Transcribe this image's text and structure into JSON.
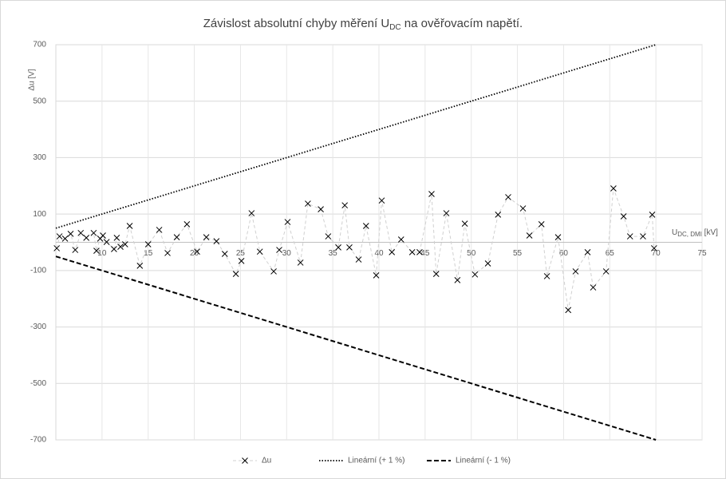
{
  "chart_data": {
    "type": "line",
    "title": "Závislost absolutní chyby měření U",
    "title_sub": "DC",
    "title_end": " na ověřovacím napětí.",
    "y_label": "Δu [V]",
    "x_label": "U",
    "x_label_sub": "DC, DMI",
    "x_label_end": " [kV]",
    "xlim": [
      5,
      75
    ],
    "xticks": [
      10,
      15,
      20,
      25,
      30,
      35,
      40,
      45,
      50,
      55,
      60,
      65,
      70,
      75
    ],
    "ylim": [
      -700,
      700
    ],
    "yticks": [
      -700,
      -500,
      -300,
      -100,
      100,
      300,
      500,
      700
    ],
    "grid": true,
    "legend": "bottom",
    "series": [
      {
        "name": "Δu",
        "color": "#d0d0d0",
        "marker_color": "#000000",
        "marker": "x",
        "dash": "dashed",
        "x": [
          5.1,
          5.4,
          6.0,
          6.6,
          7.1,
          7.7,
          8.3,
          9.1,
          9.4,
          9.8,
          10.1,
          10.5,
          11.3,
          11.6,
          12.0,
          12.5,
          13.0,
          14.1,
          15.0,
          16.2,
          17.1,
          18.1,
          19.2,
          20.3,
          21.3,
          22.4,
          23.3,
          24.5,
          25.1,
          26.2,
          27.1,
          28.6,
          29.2,
          30.1,
          31.5,
          32.3,
          33.7,
          34.5,
          35.6,
          36.3,
          36.8,
          37.8,
          38.6,
          39.7,
          40.3,
          41.4,
          42.4,
          43.6,
          44.4,
          45.7,
          46.2,
          47.3,
          48.5,
          49.3,
          50.4,
          51.8,
          52.9,
          54.0,
          55.6,
          56.3,
          57.6,
          58.2,
          59.4,
          60.5,
          61.3,
          62.6,
          63.2,
          64.6,
          65.4,
          66.5,
          67.2,
          68.6,
          69.6,
          69.8
        ],
        "values": [
          -21,
          21,
          13,
          30,
          -27,
          33,
          16,
          33,
          -30,
          13,
          24,
          1,
          -24,
          16,
          -16,
          -7,
          58,
          -83,
          -7,
          44,
          -38,
          18,
          64,
          -33,
          18,
          4,
          -41,
          -112,
          -66,
          103,
          -33,
          -103,
          -27,
          72,
          -72,
          137,
          117,
          21,
          -18,
          131,
          -18,
          -61,
          58,
          -117,
          148,
          -35,
          10,
          -35,
          -35,
          171,
          -112,
          103,
          -134,
          66,
          -114,
          -75,
          98,
          160,
          120,
          24,
          64,
          -120,
          18,
          -240,
          -103,
          -35,
          -160,
          -103,
          191,
          92,
          21,
          21,
          98,
          -21
        ]
      },
      {
        "name": "Lineární (+ 1 %)",
        "color": "#000000",
        "dash": "dotted",
        "x": [
          5,
          70
        ],
        "values": [
          50,
          700
        ]
      },
      {
        "name": "Lineární (- 1 %)",
        "color": "#000000",
        "dash": "dashed-bold",
        "x": [
          5,
          70
        ],
        "values": [
          -50,
          -700
        ]
      }
    ]
  }
}
